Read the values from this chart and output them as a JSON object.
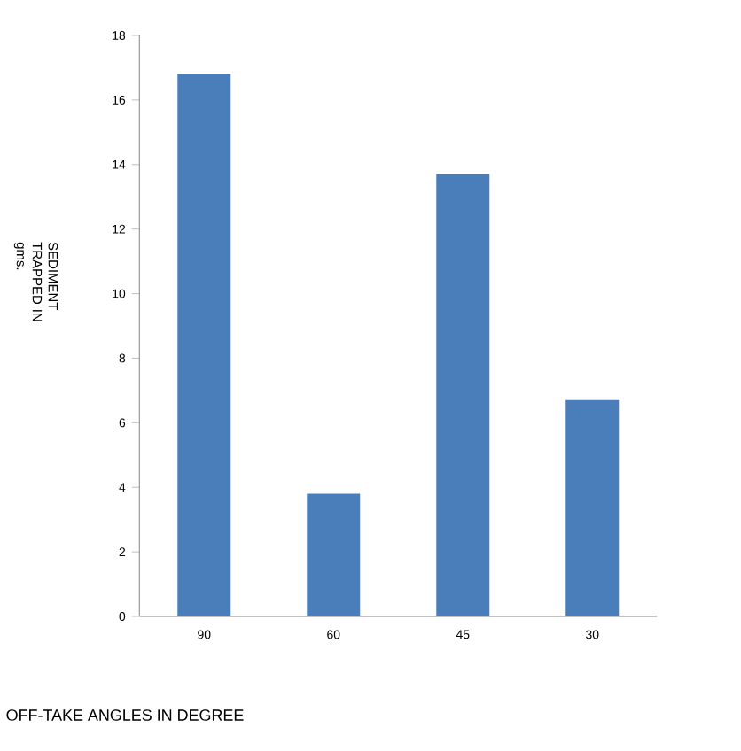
{
  "chart_data": {
    "type": "bar",
    "xlabel": "OFF-TAKE  ANGLES IN DEGREE",
    "ylabel": "SEDIMENT TRAPPED IN gms.",
    "categories": [
      "90",
      "60",
      "45",
      "30"
    ],
    "values": [
      16.8,
      3.8,
      13.7,
      6.7
    ],
    "color": "#4a7ebb",
    "ylim": [
      0,
      18
    ],
    "yticks": [
      0,
      2,
      4,
      6,
      8,
      10,
      12,
      14,
      16,
      18
    ],
    "grid": false
  }
}
